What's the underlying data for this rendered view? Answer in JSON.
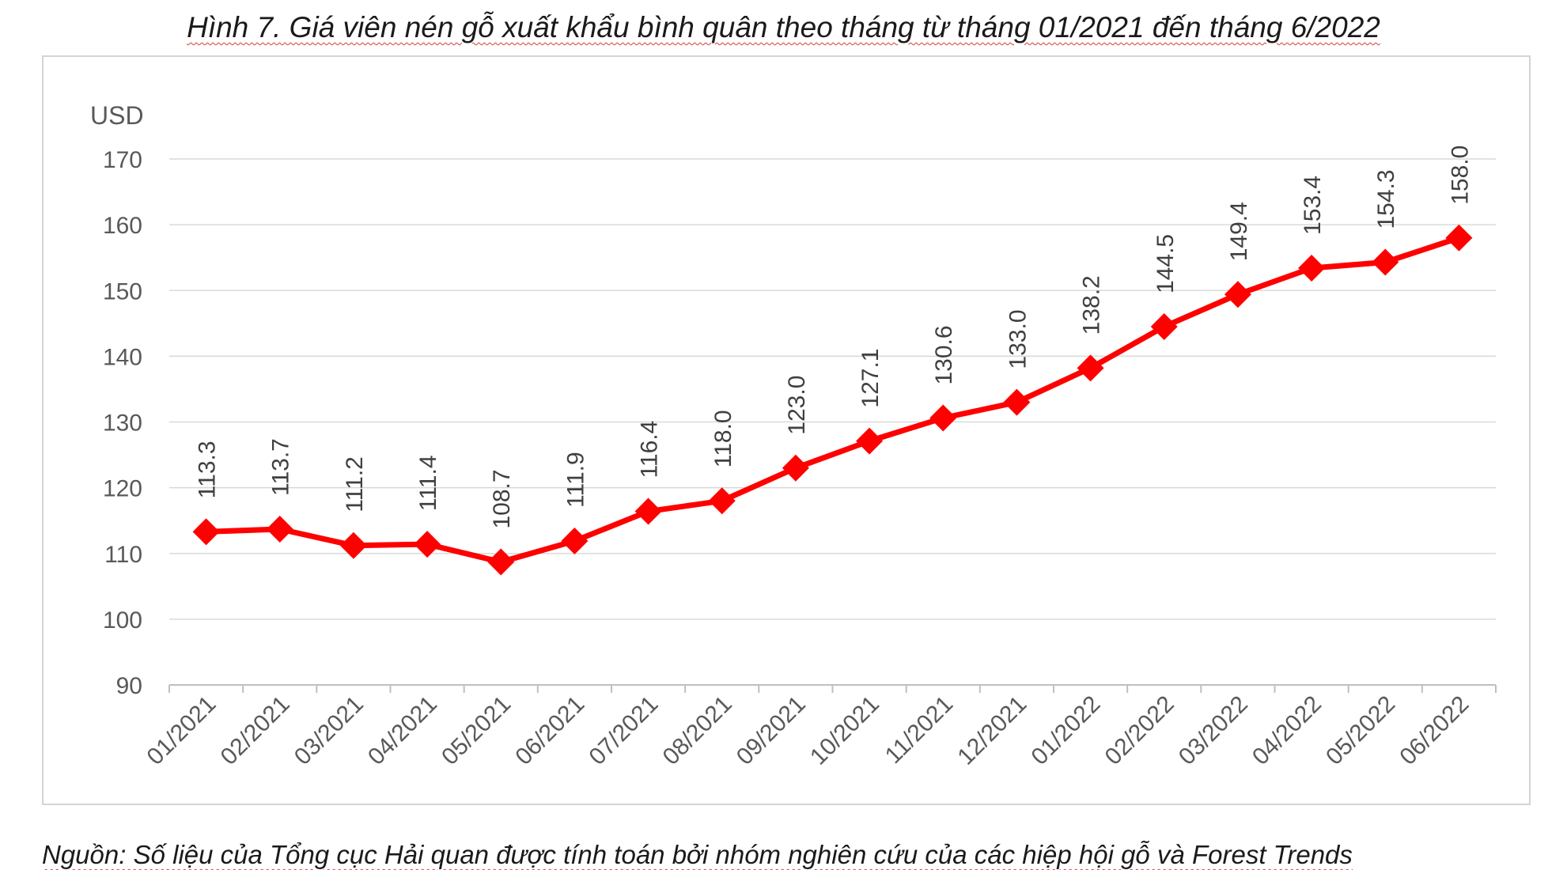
{
  "title": "Hình 7. Giá viên nén gỗ xuất khẩu bình quân theo tháng từ tháng 01/2021 đến tháng 6/2022",
  "source": "Nguồn: Số liệu của Tổng cục Hải quan được tính toán bởi nhóm nghiên cứu của các hiệp hội gỗ và Forest Trends",
  "chart_data": {
    "type": "line",
    "title": "Hình 7. Giá viên nén gỗ xuất khẩu bình quân theo tháng từ tháng 01/2021 đến tháng 6/2022",
    "xlabel": "",
    "ylabel": "USD",
    "ylim": [
      90,
      170
    ],
    "yticks": [
      90,
      100,
      110,
      120,
      130,
      140,
      150,
      160,
      170
    ],
    "grid": true,
    "legend": "none",
    "line_color": "#ff0000",
    "categories": [
      "01/2021",
      "02/2021",
      "03/2021",
      "04/2021",
      "05/2021",
      "06/2021",
      "07/2021",
      "08/2021",
      "09/2021",
      "10/2021",
      "11/2021",
      "12/2021",
      "01/2022",
      "02/2022",
      "03/2022",
      "04/2022",
      "05/2022",
      "06/2022"
    ],
    "series": [
      {
        "values": [
          113.3,
          113.7,
          111.2,
          111.4,
          108.7,
          111.9,
          116.4,
          118.0,
          123.0,
          127.1,
          130.6,
          133.0,
          138.2,
          144.5,
          149.4,
          153.4,
          154.3,
          158.0
        ],
        "labels": [
          "113.3",
          "113.7",
          "111.2",
          "111.4",
          "108.7",
          "111.9",
          "116.4",
          "118.0",
          "123.0",
          "127.1",
          "130.6",
          "133.0",
          "138.2",
          "144.5",
          "149.4",
          "153.4",
          "154.3",
          "158.0"
        ]
      }
    ]
  }
}
